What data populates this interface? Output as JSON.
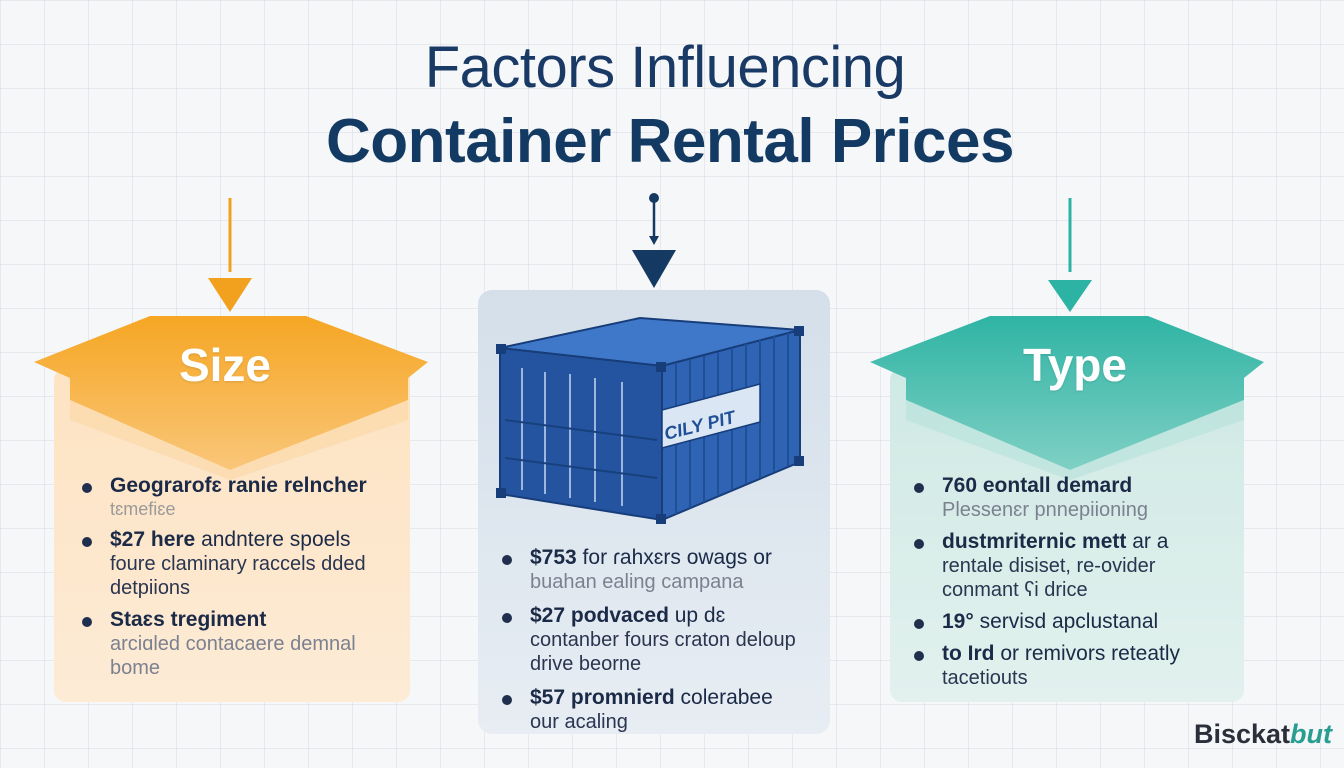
{
  "title": {
    "line1": "Factors Influencing",
    "line2": "Container Rental Prices"
  },
  "colors": {
    "size_accent": "#f2a11f",
    "type_accent": "#2db3a3",
    "center_accent": "#143a63",
    "container": "#2458a8"
  },
  "left_card": {
    "label": "Size",
    "items": [
      {
        "head": "Geograrofɛ ranie relncher",
        "sub": "",
        "faint": "tɛmefiɛe"
      },
      {
        "head": "$27 here",
        "head_rest": " andntere spoels",
        "sub": "foure claminary raccels dded detpiions",
        "faint": ""
      },
      {
        "head": "Staɛs tregiment",
        "sub": "",
        "faint": "arciɑled contacaere demnal bome"
      }
    ]
  },
  "center_card": {
    "container_icon": "shipping-container-icon",
    "container_logo": "CILY PIT",
    "items": [
      {
        "head": "$753",
        "head_rest": " for ɾahxɛrs owags or",
        "faint": "buahan ealing campana"
      },
      {
        "head": "$27 podvaced",
        "head_rest": " up dɛ",
        "sub": "contanber fours craton deloup drive beorne"
      },
      {
        "head": "$57 promnierd",
        "head_rest": " colerabee",
        "sub": "our acaling"
      }
    ]
  },
  "right_card": {
    "label": "Type",
    "items": [
      {
        "head": "760 eontall demard",
        "faint": "Plessenɛr pnnepiioning"
      },
      {
        "head": "dustmriternic mett",
        "head_rest": " ar a",
        "sub": "rentale disiset, re-ovider conmant ʕi drice"
      },
      {
        "head": "19°",
        "head_rest": " servisd apclustanal",
        "sub": ""
      },
      {
        "head": "to Ird",
        "head_rest": " or remivors reteatly",
        "sub": "tacetiouts"
      }
    ]
  },
  "brand": {
    "part1": "Bisckat",
    "part2": "but"
  }
}
